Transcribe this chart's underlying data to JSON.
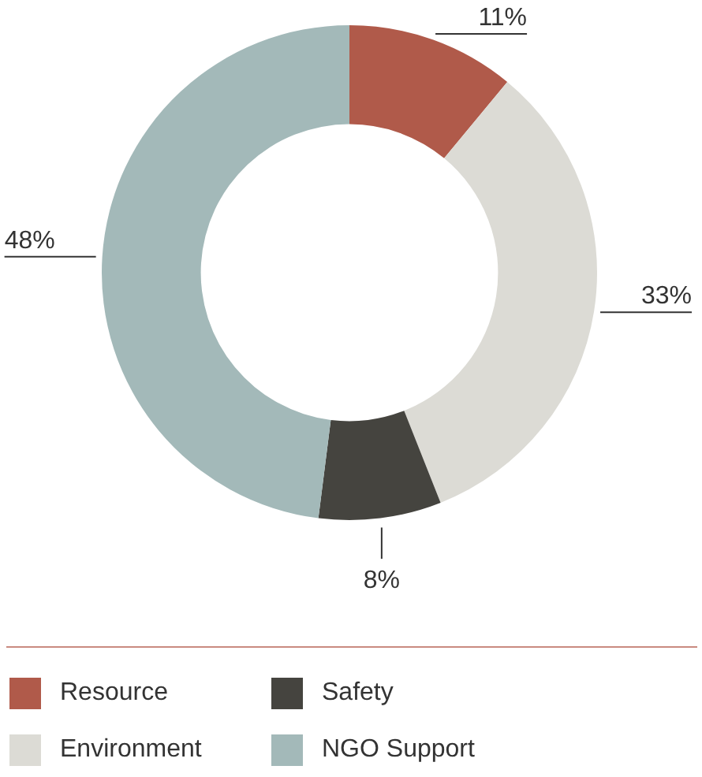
{
  "chart_data": {
    "type": "donut",
    "categories": [
      "Resource",
      "Environment",
      "Safety",
      "NGO Support"
    ],
    "values": [
      11,
      33,
      8,
      48
    ],
    "value_labels": [
      "11%",
      "33%",
      "8%",
      "48%"
    ],
    "colors": [
      "#b05a4a",
      "#dcdbd5",
      "#45443f",
      "#a3b9b9"
    ],
    "legend": "bottom"
  }
}
